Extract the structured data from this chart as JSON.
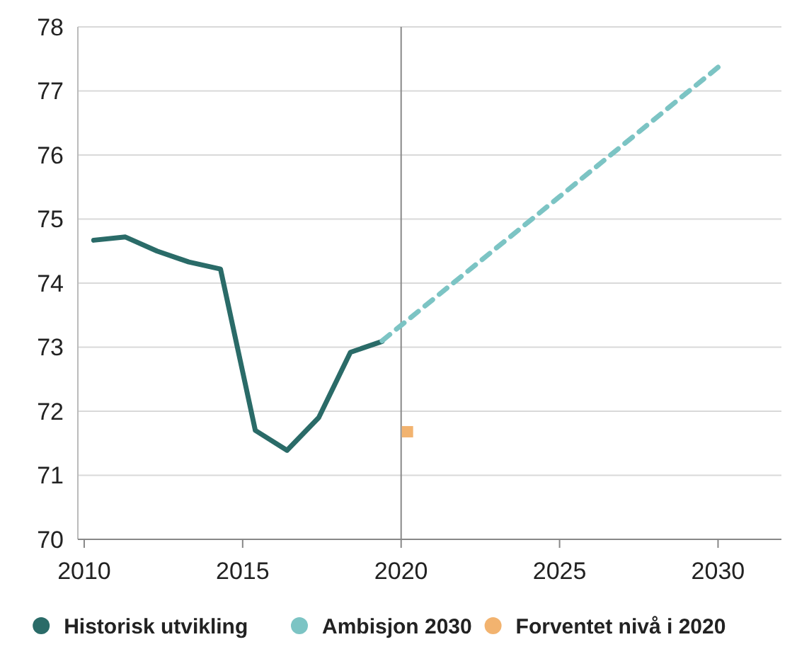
{
  "chart_data": {
    "type": "line",
    "xlim": [
      2009.8,
      2032
    ],
    "xticks": [
      2010,
      2015,
      2020,
      2025,
      2030
    ],
    "ylim": [
      70,
      78
    ],
    "yticks": [
      70,
      71,
      72,
      73,
      74,
      75,
      76,
      77,
      78
    ],
    "grid": "y",
    "legend": "bottom",
    "ref_lines": [
      {
        "axis": "x",
        "value": 2020,
        "color": "#888888"
      }
    ],
    "series": [
      {
        "name": "Historisk utvikling",
        "color": "#2a6b68",
        "line_style": "solid",
        "marker": "none",
        "x": [
          2010.3,
          2011.3,
          2012.3,
          2013.3,
          2014.3,
          2015.4,
          2016.4,
          2017.4,
          2018.4,
          2019.4
        ],
        "values": [
          74.67,
          74.72,
          74.5,
          74.33,
          74.22,
          71.7,
          71.39,
          71.9,
          72.92,
          73.09
        ]
      },
      {
        "name": "Ambisjon 2030",
        "color": "#7cc4c4",
        "line_style": "dashed",
        "marker": "none",
        "x": [
          2019.4,
          2025,
          2030.2
        ],
        "values": [
          73.1,
          75.35,
          77.45
        ]
      },
      {
        "name": "Forventet nivå i 2020",
        "type": "scatter",
        "color": "#f2b36f",
        "marker": "square",
        "x": [
          2020.2
        ],
        "values": [
          71.68
        ]
      }
    ]
  }
}
